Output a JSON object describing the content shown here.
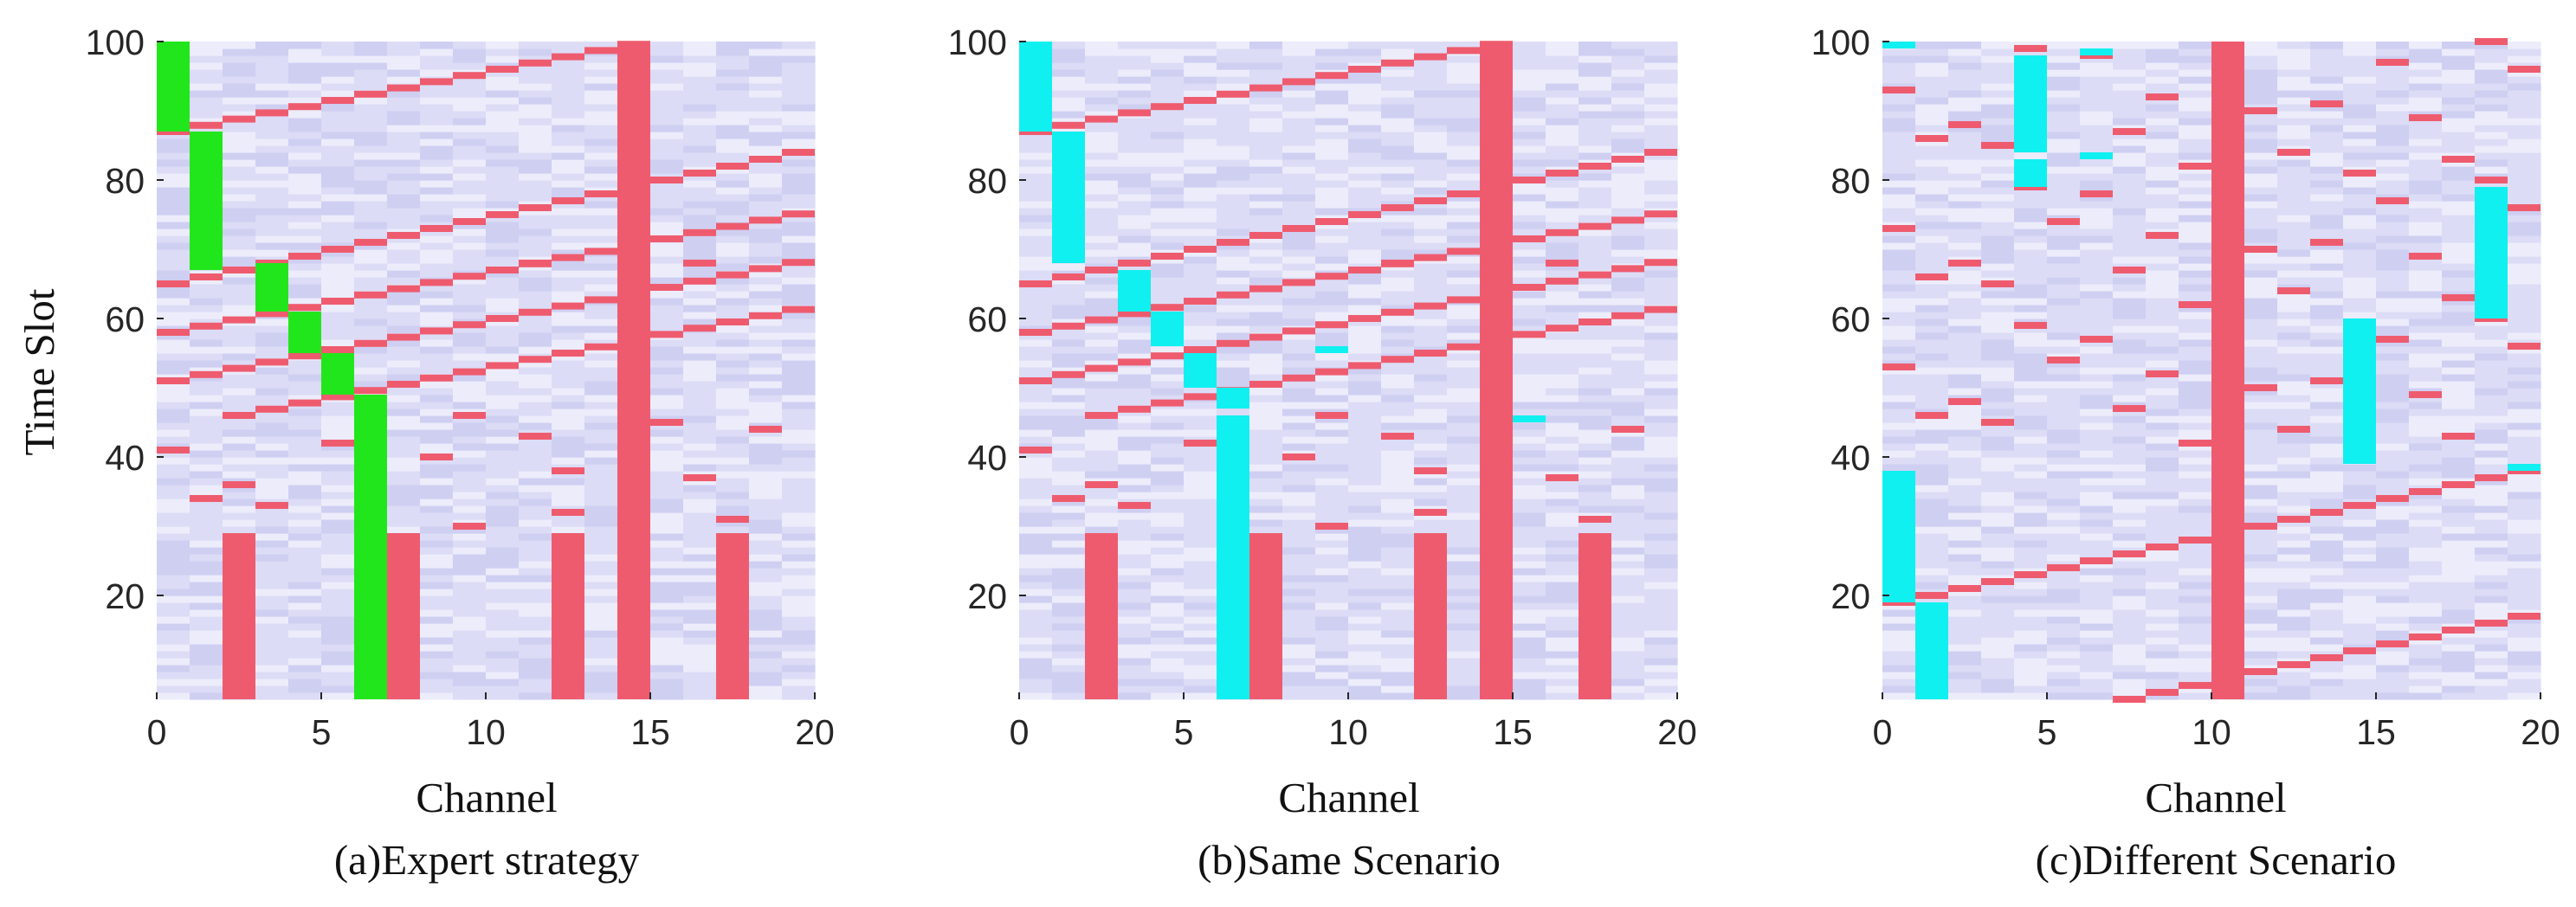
{
  "colors": {
    "background_light": "#ececfb",
    "background_mid": "#dcdcf6",
    "background_dark": "#cfcff2",
    "red": "#ef5b6e",
    "green": "#22e61c",
    "cyan": "#10f0f0"
  },
  "chart_data": [
    {
      "type": "heatmap",
      "title": "(a)Expert strategy",
      "xlabel": "Channel",
      "ylabel": "Time Slot",
      "xlim": [
        0,
        20
      ],
      "ylim": [
        5,
        100
      ],
      "xticks": [
        0,
        5,
        10,
        15,
        20
      ],
      "yticks": [
        20,
        40,
        60,
        80,
        100
      ],
      "red_blocks": [
        {
          "channel": 2,
          "slots": [
            5,
            29
          ]
        },
        {
          "channel": 7,
          "slots": [
            5,
            29
          ]
        },
        {
          "channel": 12,
          "slots": [
            5,
            29
          ]
        },
        {
          "channel": 14,
          "slots": [
            5,
            100
          ]
        },
        {
          "channel": 17,
          "slots": [
            5,
            29
          ]
        }
      ],
      "red_sweeps": [
        {
          "start_channel": 0,
          "start_slot": 87,
          "slot_step": 0.9
        },
        {
          "start_channel": 0,
          "start_slot": 65,
          "slot_step": 1.0
        },
        {
          "start_channel": 0,
          "start_slot": 58,
          "slot_step": 0.9
        },
        {
          "start_channel": 0,
          "start_slot": 51,
          "slot_step": 0.9
        },
        {
          "start_channel": 2,
          "start_slot": 46,
          "slot_step": 0.9
        }
      ],
      "red_marks": [
        {
          "channel": 0,
          "slot": 41
        },
        {
          "channel": 1,
          "slot": 34
        },
        {
          "channel": 2,
          "slot": 36
        },
        {
          "channel": 3,
          "slot": 33
        },
        {
          "channel": 5,
          "slot": 42
        },
        {
          "channel": 8,
          "slot": 40
        },
        {
          "channel": 9,
          "slot": 30
        },
        {
          "channel": 11,
          "slot": 43
        },
        {
          "channel": 12,
          "slot": 38
        },
        {
          "channel": 12,
          "slot": 32
        },
        {
          "channel": 15,
          "slot": 45
        },
        {
          "channel": 16,
          "slot": 37
        },
        {
          "channel": 17,
          "slot": 31
        },
        {
          "channel": 11,
          "slot": 68
        },
        {
          "channel": 16,
          "slot": 68
        },
        {
          "channel": 9,
          "slot": 46
        },
        {
          "channel": 18,
          "slot": 44
        }
      ],
      "highlight_color": "green",
      "highlight_blocks": [
        {
          "channel": 0,
          "slots": [
            87,
            100
          ]
        },
        {
          "channel": 1,
          "slots": [
            67,
            87
          ]
        },
        {
          "channel": 3,
          "slots": [
            61,
            68
          ]
        },
        {
          "channel": 4,
          "slots": [
            55,
            61
          ]
        },
        {
          "channel": 5,
          "slots": [
            49,
            55
          ]
        },
        {
          "channel": 6,
          "slots": [
            5,
            49
          ]
        }
      ]
    },
    {
      "type": "heatmap",
      "title": "(b)Same Scenario",
      "xlabel": "Channel",
      "ylabel": "",
      "xlim": [
        0,
        20
      ],
      "ylim": [
        5,
        100
      ],
      "xticks": [
        0,
        5,
        10,
        15,
        20
      ],
      "yticks": [
        20,
        40,
        60,
        80,
        100
      ],
      "red_blocks": [
        {
          "channel": 2,
          "slots": [
            5,
            29
          ]
        },
        {
          "channel": 7,
          "slots": [
            5,
            29
          ]
        },
        {
          "channel": 12,
          "slots": [
            5,
            29
          ]
        },
        {
          "channel": 14,
          "slots": [
            5,
            100
          ]
        },
        {
          "channel": 17,
          "slots": [
            5,
            29
          ]
        }
      ],
      "red_sweeps": [
        {
          "start_channel": 0,
          "start_slot": 87,
          "slot_step": 0.9
        },
        {
          "start_channel": 0,
          "start_slot": 65,
          "slot_step": 1.0
        },
        {
          "start_channel": 0,
          "start_slot": 58,
          "slot_step": 0.9
        },
        {
          "start_channel": 0,
          "start_slot": 51,
          "slot_step": 0.9
        },
        {
          "start_channel": 2,
          "start_slot": 46,
          "slot_step": 0.9
        }
      ],
      "red_marks": [
        {
          "channel": 0,
          "slot": 41
        },
        {
          "channel": 1,
          "slot": 34
        },
        {
          "channel": 2,
          "slot": 36
        },
        {
          "channel": 3,
          "slot": 33
        },
        {
          "channel": 5,
          "slot": 42
        },
        {
          "channel": 8,
          "slot": 40
        },
        {
          "channel": 9,
          "slot": 30
        },
        {
          "channel": 11,
          "slot": 43
        },
        {
          "channel": 12,
          "slot": 38
        },
        {
          "channel": 12,
          "slot": 32
        },
        {
          "channel": 16,
          "slot": 37
        },
        {
          "channel": 17,
          "slot": 31
        },
        {
          "channel": 11,
          "slot": 68
        },
        {
          "channel": 16,
          "slot": 68
        },
        {
          "channel": 9,
          "slot": 46
        },
        {
          "channel": 18,
          "slot": 44
        }
      ],
      "highlight_color": "cyan",
      "highlight_blocks": [
        {
          "channel": 0,
          "slots": [
            87,
            100
          ]
        },
        {
          "channel": 1,
          "slots": [
            68,
            87
          ]
        },
        {
          "channel": 3,
          "slots": [
            61,
            67
          ]
        },
        {
          "channel": 4,
          "slots": [
            56,
            61
          ]
        },
        {
          "channel": 5,
          "slots": [
            50,
            55
          ]
        },
        {
          "channel": 6,
          "slots": [
            5,
            46
          ]
        },
        {
          "channel": 6,
          "slots": [
            47,
            50
          ]
        },
        {
          "channel": 9,
          "slots": [
            55,
            56
          ]
        },
        {
          "channel": 15,
          "slots": [
            45,
            46
          ]
        }
      ]
    },
    {
      "type": "heatmap",
      "title": "(c)Different Scenario",
      "xlabel": "Channel",
      "ylabel": "",
      "xlim": [
        0,
        20
      ],
      "ylim": [
        5,
        100
      ],
      "xticks": [
        0,
        5,
        10,
        15,
        20
      ],
      "yticks": [
        20,
        40,
        60,
        80,
        100
      ],
      "red_blocks": [
        {
          "channel": 10,
          "slots": [
            5,
            100
          ]
        }
      ],
      "red_sweeps": [
        {
          "start_channel": 0,
          "start_slot": 19,
          "slot_step": 1.0
        },
        {
          "start_channel": 7,
          "start_slot": 5,
          "slot_step": 1.0
        }
      ],
      "red_marks": [
        {
          "channel": 0,
          "slot": 93
        },
        {
          "channel": 0,
          "slot": 73
        },
        {
          "channel": 0,
          "slot": 53
        },
        {
          "channel": 1,
          "slot": 86
        },
        {
          "channel": 1,
          "slot": 66
        },
        {
          "channel": 1,
          "slot": 46
        },
        {
          "channel": 2,
          "slot": 88
        },
        {
          "channel": 2,
          "slot": 68
        },
        {
          "channel": 2,
          "slot": 48
        },
        {
          "channel": 3,
          "slot": 85
        },
        {
          "channel": 3,
          "slot": 65
        },
        {
          "channel": 3,
          "slot": 45
        },
        {
          "channel": 4,
          "slot": 99
        },
        {
          "channel": 4,
          "slot": 79
        },
        {
          "channel": 4,
          "slot": 59
        },
        {
          "channel": 5,
          "slot": 74
        },
        {
          "channel": 5,
          "slot": 54
        },
        {
          "channel": 6,
          "slot": 98
        },
        {
          "channel": 6,
          "slot": 78
        },
        {
          "channel": 6,
          "slot": 57
        },
        {
          "channel": 7,
          "slot": 87
        },
        {
          "channel": 7,
          "slot": 67
        },
        {
          "channel": 7,
          "slot": 47
        },
        {
          "channel": 8,
          "slot": 92
        },
        {
          "channel": 8,
          "slot": 72
        },
        {
          "channel": 8,
          "slot": 52
        },
        {
          "channel": 9,
          "slot": 82
        },
        {
          "channel": 9,
          "slot": 62
        },
        {
          "channel": 9,
          "slot": 42
        },
        {
          "channel": 11,
          "slot": 90
        },
        {
          "channel": 11,
          "slot": 70
        },
        {
          "channel": 11,
          "slot": 50
        },
        {
          "channel": 12,
          "slot": 84
        },
        {
          "channel": 12,
          "slot": 64
        },
        {
          "channel": 12,
          "slot": 44
        },
        {
          "channel": 13,
          "slot": 91
        },
        {
          "channel": 13,
          "slot": 71
        },
        {
          "channel": 13,
          "slot": 51
        },
        {
          "channel": 14,
          "slot": 81
        },
        {
          "channel": 15,
          "slot": 97
        },
        {
          "channel": 15,
          "slot": 77
        },
        {
          "channel": 15,
          "slot": 57
        },
        {
          "channel": 16,
          "slot": 89
        },
        {
          "channel": 16,
          "slot": 69
        },
        {
          "channel": 16,
          "slot": 49
        },
        {
          "channel": 17,
          "slot": 83
        },
        {
          "channel": 17,
          "slot": 63
        },
        {
          "channel": 17,
          "slot": 43
        },
        {
          "channel": 18,
          "slot": 100
        },
        {
          "channel": 18,
          "slot": 80
        },
        {
          "channel": 18,
          "slot": 60
        },
        {
          "channel": 19,
          "slot": 96
        },
        {
          "channel": 19,
          "slot": 76
        },
        {
          "channel": 19,
          "slot": 56
        }
      ],
      "highlight_color": "cyan",
      "highlight_blocks": [
        {
          "channel": 0,
          "slots": [
            99,
            100
          ]
        },
        {
          "channel": 0,
          "slots": [
            19,
            38
          ]
        },
        {
          "channel": 1,
          "slots": [
            5,
            19
          ]
        },
        {
          "channel": 4,
          "slots": [
            84,
            98
          ]
        },
        {
          "channel": 4,
          "slots": [
            79,
            83
          ]
        },
        {
          "channel": 6,
          "slots": [
            98,
            99
          ]
        },
        {
          "channel": 6,
          "slots": [
            83,
            84
          ]
        },
        {
          "channel": 14,
          "slots": [
            39,
            60
          ]
        },
        {
          "channel": 18,
          "slots": [
            60,
            79
          ]
        },
        {
          "channel": 19,
          "slots": [
            38,
            39
          ]
        }
      ]
    }
  ]
}
